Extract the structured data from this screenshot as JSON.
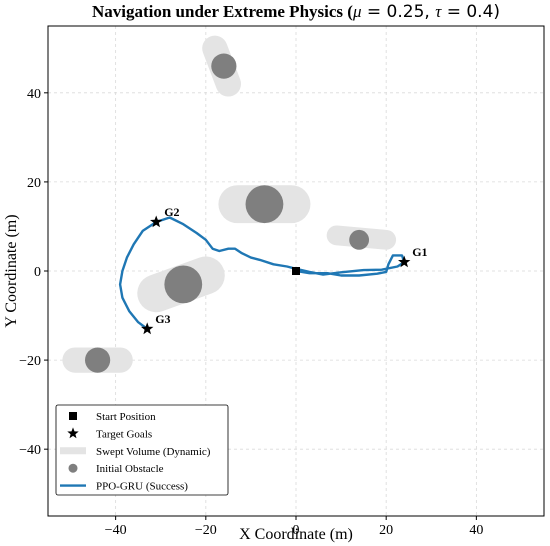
{
  "chart_data": {
    "type": "line",
    "title_prefix": "Navigation under Extreme Physics (",
    "title_mu": "μ",
    "title_eq1": " = 0.25, ",
    "title_tau": "τ",
    "title_eq2": " = 0.4)",
    "xlabel": "X Coordinate (m)",
    "ylabel": "Y Coordinate (m)",
    "xlim": [
      -55,
      55
    ],
    "ylim": [
      -55,
      55
    ],
    "xticks": [
      -40,
      -20,
      0,
      20,
      40
    ],
    "yticks": [
      -40,
      -20,
      0,
      20,
      40
    ],
    "xtick_labels": [
      "−40",
      "−20",
      "0",
      "20",
      "40"
    ],
    "ytick_labels": [
      "−40",
      "−20",
      "0",
      "20",
      "40"
    ],
    "grid": true,
    "legend_position": "bottom-left",
    "colors": {
      "path": "#1f77b4",
      "obstacle": "#7f7f7f",
      "swept": "#e4e4e4",
      "marker": "#000000"
    },
    "start": {
      "x": 0,
      "y": 0
    },
    "goals": [
      {
        "label": "G1",
        "x": 24,
        "y": 2
      },
      {
        "label": "G2",
        "x": -31,
        "y": 11
      },
      {
        "label": "G3",
        "x": -33,
        "y": -13
      }
    ],
    "obstacles": [
      {
        "x": -16,
        "y": 46,
        "r": 2.8,
        "swept": [
          [
            -18,
            50
          ],
          [
            -15,
            42
          ]
        ]
      },
      {
        "x": -7,
        "y": 15,
        "r": 4.2,
        "swept": [
          [
            -13,
            15
          ],
          [
            -1,
            15
          ]
        ]
      },
      {
        "x": 14,
        "y": 7,
        "r": 2.2,
        "swept": [
          [
            9,
            8
          ],
          [
            20,
            7
          ]
        ]
      },
      {
        "x": -25,
        "y": -3,
        "r": 4.2,
        "swept": [
          [
            -31,
            -5
          ],
          [
            -20,
            -1
          ]
        ]
      },
      {
        "x": -44,
        "y": -20,
        "r": 2.8,
        "swept": [
          [
            -49,
            -20
          ],
          [
            -39,
            -20
          ]
        ]
      }
    ],
    "path": [
      [
        0,
        0
      ],
      [
        3,
        -0.5
      ],
      [
        7,
        -0.5
      ],
      [
        10,
        -1
      ],
      [
        14,
        -1
      ],
      [
        18,
        -0.6
      ],
      [
        20,
        -0.2
      ],
      [
        20.5,
        1.5
      ],
      [
        21.5,
        3.5
      ],
      [
        23.5,
        3.5
      ],
      [
        24,
        2
      ],
      [
        22.5,
        1
      ],
      [
        19,
        0.3
      ],
      [
        15,
        0.2
      ],
      [
        10,
        -0.3
      ],
      [
        6,
        -0.8
      ],
      [
        3,
        -0.2
      ],
      [
        0,
        0.5
      ],
      [
        -2,
        1
      ],
      [
        -5,
        1.5
      ],
      [
        -8,
        2.5
      ],
      [
        -10,
        3
      ],
      [
        -12,
        4
      ],
      [
        -13.5,
        5
      ],
      [
        -15,
        5
      ],
      [
        -17,
        4.5
      ],
      [
        -18.5,
        5
      ],
      [
        -20,
        7
      ],
      [
        -22,
        8.5
      ],
      [
        -25,
        10.5
      ],
      [
        -28,
        12
      ],
      [
        -31,
        11
      ],
      [
        -34,
        9
      ],
      [
        -36,
        6
      ],
      [
        -37.5,
        3
      ],
      [
        -38.5,
        0
      ],
      [
        -39,
        -3
      ],
      [
        -38.5,
        -6
      ],
      [
        -37,
        -9
      ],
      [
        -35,
        -11.5
      ],
      [
        -33,
        -13
      ]
    ],
    "legend": [
      {
        "kind": "square",
        "label": "Start Position"
      },
      {
        "kind": "star",
        "label": "Target Goals"
      },
      {
        "kind": "swept",
        "label": "Swept Volume (Dynamic)"
      },
      {
        "kind": "circle",
        "label": "Initial Obstacle"
      },
      {
        "kind": "line",
        "label": "PPO-GRU (Success)"
      }
    ]
  }
}
